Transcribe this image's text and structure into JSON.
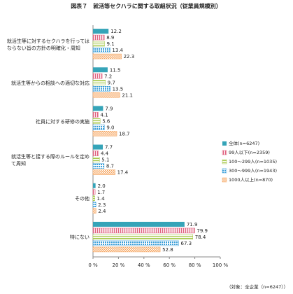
{
  "chart_data": {
    "type": "hbar",
    "title": "図表７　就活等セクハラに関する取組状況（従業員規模別）",
    "categories": [
      "就活生等に対するセクハラを行っては\nならない旨の方針の明確化・周知",
      "就活生等からの相談への適切な対応",
      "社員に対する研修の実施",
      "就活生等と接する際のルールを定め\nて周知",
      "その他",
      "特にない"
    ],
    "series": [
      {
        "name": "全体(n=6247)",
        "color": "#35a4b8",
        "values": [
          12.2,
          11.5,
          7.9,
          7.7,
          2.0,
          71.9
        ],
        "value_labels": [
          "12.2",
          "11.5",
          "7.9",
          "7.7",
          "2.0",
          "71.9"
        ]
      },
      {
        "name": "99人以下(n=2359)",
        "color": "#e0607e",
        "values": [
          8.9,
          7.2,
          4.1,
          4.4,
          1.7,
          79.9
        ],
        "value_labels": [
          "8.9",
          "7.2",
          "4.1",
          "4.4",
          "1.7",
          "79.9"
        ]
      },
      {
        "name": "100～299人(n=1035)",
        "color": "#a3c644",
        "values": [
          9.1,
          9.7,
          5.6,
          5.1,
          1.4,
          78.4
        ],
        "value_labels": [
          "9.1",
          "9.7",
          "5.6",
          "5.1",
          "1.4",
          "78.4"
        ]
      },
      {
        "name": "300～999人(n=1943)",
        "color": "#3d9fd8",
        "values": [
          13.4,
          13.5,
          9.0,
          8.7,
          2.3,
          67.3
        ],
        "value_labels": [
          "13.4",
          "13.5",
          "9.0",
          "8.7",
          "2.3",
          "67.3"
        ]
      },
      {
        "name": "1000人以上(n=870)",
        "color": "#f5a25a",
        "values": [
          22.3,
          21.1,
          18.7,
          17.4,
          2.4,
          52.8
        ],
        "value_labels": [
          "22.3",
          "21.1",
          "18.7",
          "17.4",
          "2.4",
          "52.8"
        ]
      }
    ],
    "xlim": [
      0,
      100
    ],
    "xticks": [
      {
        "value": 0,
        "label": "0 %"
      },
      {
        "value": 20,
        "label": "20 %"
      },
      {
        "value": 40,
        "label": "40 %"
      },
      {
        "value": 60,
        "label": "60 %"
      },
      {
        "value": 80,
        "label": "80 %"
      },
      {
        "value": 100,
        "label": "100 %"
      }
    ],
    "note": "（対象：全企業（n=6247））"
  }
}
